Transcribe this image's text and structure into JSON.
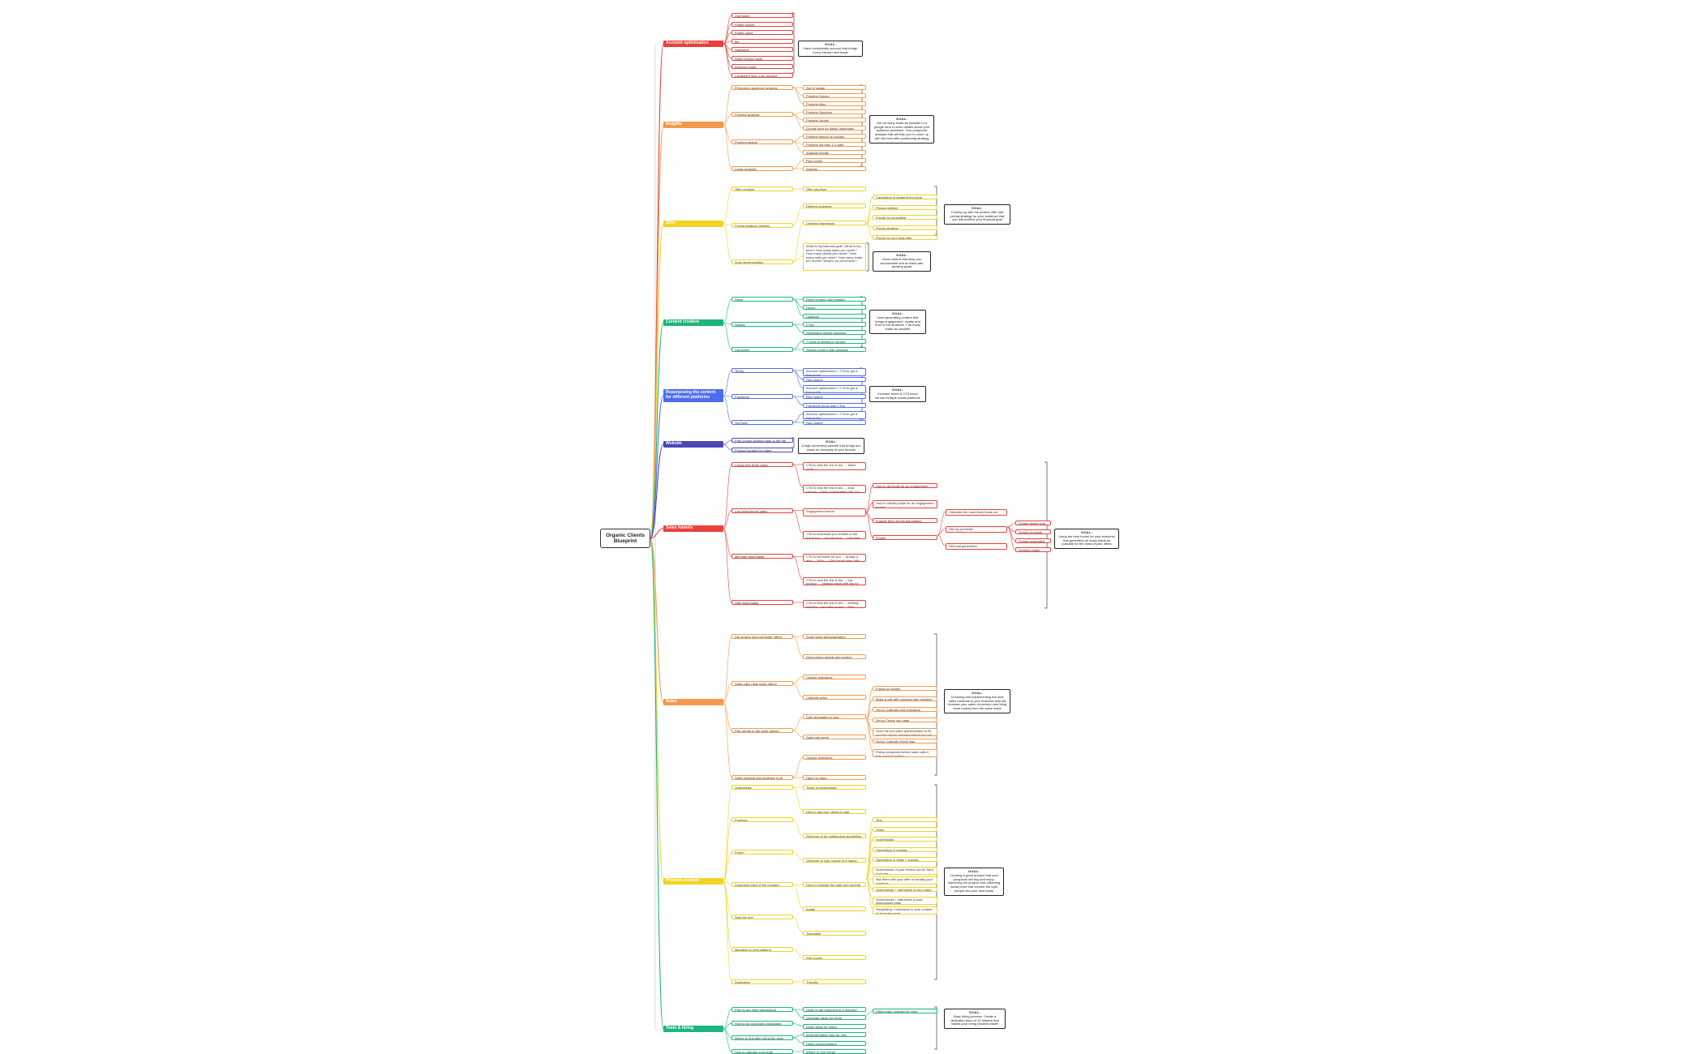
{
  "root": {
    "title": "Organic Clients Blueprint"
  },
  "goal_label": "GOAL:",
  "categories": [
    {
      "key": "account",
      "label": "Account optimization",
      "color": "#e8413c",
      "items": [
        {
          "text": "Username"
        },
        {
          "text": "Profile picture"
        },
        {
          "text": "Profile name"
        },
        {
          "text": "Bio"
        },
        {
          "text": "Highlights"
        },
        {
          "text": "Reels pinned posts"
        },
        {
          "text": "Archived posts"
        },
        {
          "text": "Consistent look of an account"
        }
      ],
      "goal": "Have consistently account that brings every follower and leads"
    },
    {
      "key": "insights",
      "label": "Insights",
      "color": "#f39a4e",
      "items": [
        {
          "text": "Performing audience analysis"
        },
        {
          "text": "Problem analysis"
        },
        {
          "text": "Problem search"
        },
        {
          "text": "Leads analysis"
        }
      ],
      "details": [
        {
          "text": "Spy in avatar"
        },
        {
          "text": "Problem Survey"
        },
        {
          "text": "Problem Map"
        },
        {
          "text": "Problem Structure"
        },
        {
          "text": "Problem Jungle"
        },
        {
          "text": "Google form for leads' responses"
        },
        {
          "text": "Problem search on socials"
        },
        {
          "text": "Problem log from 1:1 calls"
        },
        {
          "text": "Analysis results"
        },
        {
          "text": "Pain points"
        },
        {
          "text": "Insights"
        }
      ],
      "goal": "Get as many leads as possible in a google form to learn details about your audience problems. Your prospects' analysis that will help you to come up with the best offer positioning strategy"
    },
    {
      "key": "offer",
      "label": "Offer",
      "color": "#f0d326",
      "items": [
        {
          "text": "Offer creation"
        },
        {
          "text": "Pricing strategy creation"
        },
        {
          "text": "Goal decomposition"
        }
      ],
      "details": [
        {
          "text": "Offer structure"
        },
        {
          "text": "Defined problems"
        },
        {
          "text": "Learning framework"
        }
      ],
      "subdetails": [
        {
          "text": "Calculation of starter/exit pricing"
        },
        {
          "text": "Pricing method"
        },
        {
          "text": "Pricing for consulting"
        },
        {
          "text": "Pricing strategy"
        },
        {
          "text": "Pricing for your total offer"
        }
      ],
      "decomposition": "What is my financial goal? What is my price? How many sales per month? How many clients per month? How many calls per week? How many leads per month? What's my conversion?",
      "goal": "Coming up with the perfect offer and pricing strategy for your audience that you will achieve your financial goal",
      "goal2": "Clear metrics that keep you accountable and on track with growing goals"
    },
    {
      "key": "content",
      "label": "Content creation",
      "color": "#1db67c",
      "items": [
        {
          "text": "Reels"
        },
        {
          "text": "Stories"
        },
        {
          "text": "Carousels"
        }
      ],
      "details": [
        {
          "text": "Reels content plan creation"
        },
        {
          "text": "Hooks"
        },
        {
          "text": "Captions"
        },
        {
          "text": "CTAs"
        },
        {
          "text": "Storytelling stories structure"
        },
        {
          "text": "7 types of stories to nurture"
        },
        {
          "text": "Stories content plan template"
        }
      ],
      "goal": "Lead generating content that brings engagement, loyalty and trust of the audience + as many leads as possible"
    },
    {
      "key": "repurposing",
      "label": "Repurposing the content for different platforms",
      "color": "#4e6cf0",
      "items": [
        {
          "text": "TikTok"
        },
        {
          "text": "Facebook"
        },
        {
          "text": "YouTube"
        }
      ],
      "details": [
        {
          "text": "Account optimization + CTA to get a free guide"
        },
        {
          "text": "Reg routine"
        },
        {
          "text": "Account optimization + CTA to get a free guide"
        },
        {
          "text": "Reg routine"
        },
        {
          "text": "Facebook group with CTAs"
        },
        {
          "text": "Account optimization + CTA to get a free guide"
        },
        {
          "text": "Reg routine"
        }
      ],
      "goal": "Increase reach & CTA focus across multiple social platforms"
    },
    {
      "key": "website",
      "label": "Website",
      "color": "#4a47b5",
      "items": [
        {
          "text": "Free course landing page to get the leads"
        },
        {
          "text": "Product updates for sales"
        }
      ],
      "goal": "A high-converting website that brings you leads on everyday of your funnels"
    },
    {
      "key": "funnels",
      "label": "Sales funnels",
      "color": "#e8413c",
      "items": [
        {
          "text": "Cheap free ticket sales"
        },
        {
          "text": "Low ticket funnel sales"
        },
        {
          "text": "Mid-high ticket sales"
        },
        {
          "text": "High ticket sales"
        }
      ],
      "details": [
        {
          "text": "CTA to click the link in bio → Sales page"
        },
        {
          "text": "CTA to click the link in bio → lead service... Sales page/waitlist with low ticket → 10% booking"
        },
        {
          "text": "Engagement funnel"
        },
        {
          "text": "CTA to download your freebie in the link in bio → google form → 10% free sales calls"
        },
        {
          "text": "CTA to comment for you → quality a lead → 50% → 10% small sales calls"
        },
        {
          "text": "CTA to click the link in bio → low product → strategy page with link for → 50% booking sales calls"
        },
        {
          "text": "CTA to click the link in bio → landing website... new free course... 20% booking"
        }
      ],
      "engagement": [
        {
          "text": "How to get leads for an engagement funnel"
        },
        {
          "text": "How to identify leads for an engagement funnel"
        },
        {
          "text": "Engage them funnel automation"
        },
        {
          "text": "Emails"
        }
      ],
      "dm": [
        {
          "text": "Calculate the most likely leads out reach to target on funnel to a post"
        },
        {
          "text": "DM leg presenter"
        },
        {
          "text": "DM lead generation"
        }
      ],
      "scripts": [
        {
          "text": "Scripts during long talk"
        },
        {
          "text": "Scripts for leads"
        },
        {
          "text": "Scripts automated wait"
        },
        {
          "text": "Scripting leads"
        }
      ],
      "goal": "Using the best funnel for your business that generates as many leads as possible for the most of your offers"
    },
    {
      "key": "sales",
      "label": "Sales",
      "color": "#f39a4e",
      "items": [
        {
          "text": "DM closing (low-mid ticket offers)"
        },
        {
          "text": "Sales calls (high ticket offers)"
        },
        {
          "text": "Pick clients to get done offered"
        },
        {
          "text": "Sales tracking and analytics of all your high ticket offers"
        }
      ],
      "details": [
        {
          "text": "Scale script personalization"
        },
        {
          "text": "Overcoming doubts and worries"
        },
        {
          "text": "Closing objections"
        },
        {
          "text": "Calendly setup"
        },
        {
          "text": "Daily templates to your"
        },
        {
          "text": "Sales call script"
        },
        {
          "text": "Closing objections"
        },
        {
          "text": "Hand on sales"
        }
      ],
      "calls": [
        {
          "text": "Follow-up scripts"
        },
        {
          "text": "Make a call with prospect step reaction"
        },
        {
          "text": "Set up Calendly and reminders"
        },
        {
          "text": "Set up Thank you page"
        },
        {
          "text": "Send the pre-sales questionnaire to fill and the client's answers before the call"
        },
        {
          "text": "Set up Calendly check lists"
        },
        {
          "text": "Follow prospects before sales calls if they haven't replied"
        }
      ],
      "goal": "Choosing and implementing the best sales methods to your business that will increase your sales conversion and bring more money from the same leads"
    },
    {
      "key": "product",
      "label": "Product creation",
      "color": "#f0d326",
      "items": [
        {
          "text": "Outlinelinks"
        },
        {
          "text": "Freebies"
        },
        {
          "text": "Forum"
        },
        {
          "text": "Document each of the courses / reviews"
        },
        {
          "text": "Start the text"
        },
        {
          "text": "Migrating to new platform"
        },
        {
          "text": "Duplicates"
        }
      ],
      "details": [
        {
          "text": "Types of testimonials"
        },
        {
          "text": "How to ask your clients to add"
        },
        {
          "text": "Structure of an outstanding storytelling sales call to close"
        },
        {
          "text": "Structure of your course to a happy client, who will add positive review"
        },
        {
          "text": "How to increase the gain over several years"
        },
        {
          "text": "Kajabi"
        },
        {
          "text": "Teachable"
        },
        {
          "text": "Kiwi course"
        },
        {
          "text": "Thinkific"
        }
      ],
      "testimonials": [
        {
          "text": "Text"
        },
        {
          "text": "Video"
        },
        {
          "text": "Screenshots"
        },
        {
          "text": "Storytelling in reviews"
        },
        {
          "text": "Storytelling in Skills + reaction"
        },
        {
          "text": "Screenshots of your review can be Sent in stories"
        },
        {
          "text": "Ask them with your offer to identify your positives"
        },
        {
          "text": "Screenshots + Interviews in your video pages"
        },
        {
          "text": "Screenshots + interviews in your testimonials page"
        },
        {
          "text": "Storytelling + interviews in your content of all testimonials"
        }
      ],
      "goal": "Creating a great product that your prospects will buy and enjoy. Improving the product and collecting social proof that convert the right people into your best leads"
    },
    {
      "key": "team",
      "label": "Team & hiring",
      "color": "#1db67c",
      "items": [
        {
          "text": "Prep to get hired beforehand"
        },
        {
          "text": "How to do vocal and onboarding"
        },
        {
          "text": "Where to find after hiring the team bespoke"
        },
        {
          "text": "How to onboard your team"
        }
      ],
      "details": [
        {
          "text": "Learn to get resuming to 5 onboard team members tools"
        },
        {
          "text": "Generate ideas for hiring"
        },
        {
          "text": "Learn steps for hiring"
        },
        {
          "text": "Implementation step as new TeamMaster/Leader"
        },
        {
          "text": "Hiring documentation"
        },
        {
          "text": "Where to hire virtual"
        }
      ],
      "tools": "Hiring team contract for hires",
      "goal": "Easy hiring process. Create a dedicated team of 10 helpers that makes your hiring process easier"
    }
  ]
}
